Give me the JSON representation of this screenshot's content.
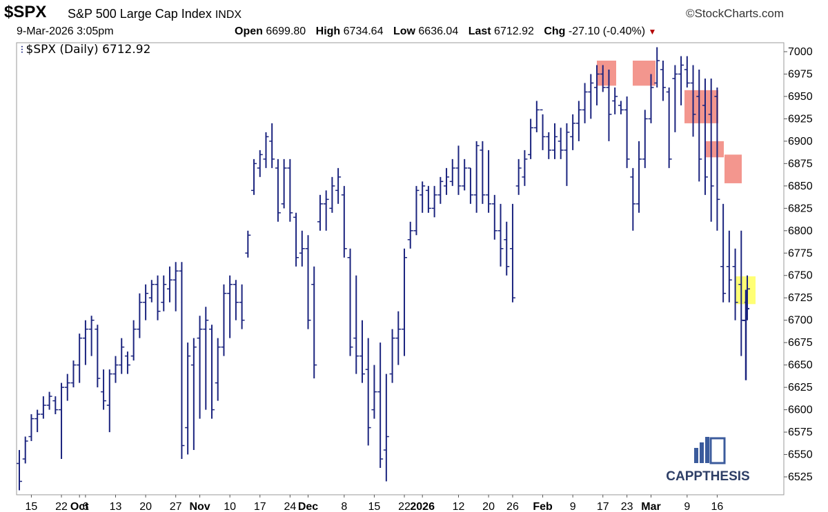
{
  "header": {
    "ticker": "$SPX",
    "name": "S&P 500 Large Cap Index",
    "exchange": "INDX",
    "brand": "©StockCharts.com",
    "date": "9-Mar-2026 3:05pm",
    "open_label": "Open",
    "open": "6699.80",
    "high_label": "High",
    "high": "6734.64",
    "low_label": "Low",
    "low": "6636.04",
    "last_label": "Last",
    "last": "6712.92",
    "chg_label": "Chg",
    "chg": "-27.10 (-0.40%)"
  },
  "legend": {
    "text": "$SPX (Daily) 6712.92"
  },
  "logo": {
    "text": "CAPPTHESIS"
  },
  "colors": {
    "bars": "#1a237e",
    "resistance_box": "#f28b82",
    "current_box": "#ffff66"
  },
  "chart_data": {
    "type": "ohlc",
    "title": "$SPX (Daily) 6712.92",
    "ylim": [
      6505,
      7010
    ],
    "yticks": [
      6525,
      6550,
      6575,
      6600,
      6625,
      6650,
      6675,
      6700,
      6725,
      6750,
      6775,
      6800,
      6825,
      6850,
      6875,
      6900,
      6925,
      6950,
      6975,
      7000
    ],
    "xtick_labels": [
      {
        "label": "15",
        "x": 2,
        "bold": false
      },
      {
        "label": "22",
        "x": 7,
        "bold": false
      },
      {
        "label": "Oct",
        "x": 10,
        "bold": true
      },
      {
        "label": "6",
        "x": 11,
        "bold": false
      },
      {
        "label": "13",
        "x": 16,
        "bold": false
      },
      {
        "label": "20",
        "x": 21,
        "bold": false
      },
      {
        "label": "27",
        "x": 26,
        "bold": false
      },
      {
        "label": "Nov",
        "x": 30,
        "bold": true
      },
      {
        "label": "10",
        "x": 35,
        "bold": false
      },
      {
        "label": "17",
        "x": 40,
        "bold": false
      },
      {
        "label": "24",
        "x": 45,
        "bold": false
      },
      {
        "label": "Dec",
        "x": 48,
        "bold": true
      },
      {
        "label": "8",
        "x": 54,
        "bold": false
      },
      {
        "label": "15",
        "x": 59,
        "bold": false
      },
      {
        "label": "22",
        "x": 64,
        "bold": false
      },
      {
        "label": "2026",
        "x": 67,
        "bold": true
      },
      {
        "label": "12",
        "x": 73,
        "bold": false
      },
      {
        "label": "20",
        "x": 78,
        "bold": false
      },
      {
        "label": "26",
        "x": 82,
        "bold": false
      },
      {
        "label": "Feb",
        "x": 87,
        "bold": true
      },
      {
        "label": "9",
        "x": 92,
        "bold": false
      },
      {
        "label": "17",
        "x": 97,
        "bold": false
      },
      {
        "label": "23",
        "x": 101,
        "bold": false
      },
      {
        "label": "Mar",
        "x": 105,
        "bold": true
      },
      {
        "label": "9",
        "x": 111,
        "bold": false
      },
      {
        "label": "16",
        "x": 116,
        "bold": false
      }
    ],
    "x_count": 118,
    "bars": [
      [
        0,
        6555,
        6510,
        6540,
        6520
      ],
      [
        1,
        6570,
        6540,
        6545,
        6565
      ],
      [
        2,
        6595,
        6565,
        6570,
        6590
      ],
      [
        3,
        6600,
        6575,
        6590,
        6595
      ],
      [
        4,
        6615,
        6590,
        6595,
        6605
      ],
      [
        5,
        6620,
        6600,
        6605,
        6615
      ],
      [
        6,
        6615,
        6595,
        6610,
        6600
      ],
      [
        7,
        6630,
        6545,
        6600,
        6625
      ],
      [
        8,
        6640,
        6610,
        6625,
        6630
      ],
      [
        9,
        6655,
        6625,
        6630,
        6650
      ],
      [
        10,
        6685,
        6630,
        6650,
        6680
      ],
      [
        11,
        6700,
        6650,
        6680,
        6690
      ],
      [
        12,
        6705,
        6660,
        6690,
        6700
      ],
      [
        13,
        6695,
        6625,
        6690,
        6635
      ],
      [
        14,
        6645,
        6600,
        6620,
        6610
      ],
      [
        15,
        6645,
        6575,
        6605,
        6640
      ],
      [
        16,
        6660,
        6630,
        6640,
        6650
      ],
      [
        17,
        6680,
        6640,
        6650,
        6670
      ],
      [
        18,
        6665,
        6640,
        6660,
        6650
      ],
      [
        19,
        6700,
        6655,
        6660,
        6690
      ],
      [
        20,
        6730,
        6680,
        6690,
        6720
      ],
      [
        21,
        6740,
        6700,
        6720,
        6730
      ],
      [
        22,
        6745,
        6720,
        6725,
        6740
      ],
      [
        23,
        6750,
        6700,
        6740,
        6710
      ],
      [
        24,
        6750,
        6710,
        6720,
        6740
      ],
      [
        25,
        6760,
        6720,
        6735,
        6745
      ],
      [
        26,
        6765,
        6710,
        6745,
        6755
      ],
      [
        27,
        6765,
        6545,
        6755,
        6560
      ],
      [
        28,
        6675,
        6550,
        6580,
        6660
      ],
      [
        29,
        6680,
        6555,
        6650,
        6670
      ],
      [
        30,
        6705,
        6590,
        6680,
        6690
      ],
      [
        31,
        6715,
        6600,
        6690,
        6700
      ],
      [
        32,
        6695,
        6590,
        6690,
        6600
      ],
      [
        33,
        6680,
        6610,
        6630,
        6670
      ],
      [
        34,
        6740,
        6660,
        6670,
        6730
      ],
      [
        35,
        6750,
        6680,
        6730,
        6740
      ],
      [
        36,
        6745,
        6700,
        6740,
        6720
      ],
      [
        37,
        6740,
        6690,
        6720,
        6700
      ],
      [
        38,
        6800,
        6770,
        6775,
        6795
      ],
      [
        39,
        6880,
        6840,
        6845,
        6875
      ],
      [
        40,
        6890,
        6860,
        6870,
        6885
      ],
      [
        41,
        6910,
        6870,
        6880,
        6905
      ],
      [
        42,
        6920,
        6870,
        6900,
        6880
      ],
      [
        43,
        6880,
        6810,
        6870,
        6820
      ],
      [
        44,
        6880,
        6825,
        6830,
        6870
      ],
      [
        45,
        6880,
        6810,
        6870,
        6820
      ],
      [
        46,
        6820,
        6760,
        6815,
        6770
      ],
      [
        47,
        6800,
        6760,
        6775,
        6780
      ],
      [
        48,
        6795,
        6690,
        6780,
        6700
      ],
      [
        49,
        6760,
        6635,
        6740,
        6650
      ],
      [
        50,
        6840,
        6800,
        6810,
        6830
      ],
      [
        51,
        6845,
        6800,
        6830,
        6835
      ],
      [
        52,
        6860,
        6820,
        6825,
        6850
      ],
      [
        53,
        6870,
        6830,
        6845,
        6860
      ],
      [
        54,
        6850,
        6770,
        6840,
        6780
      ],
      [
        55,
        6780,
        6660,
        6770,
        6670
      ],
      [
        56,
        6750,
        6640,
        6680,
        6660
      ],
      [
        57,
        6700,
        6630,
        6660,
        6640
      ],
      [
        58,
        6680,
        6560,
        6645,
        6580
      ],
      [
        59,
        6650,
        6590,
        6600,
        6620
      ],
      [
        60,
        6675,
        6535,
        6620,
        6545
      ],
      [
        61,
        6640,
        6520,
        6555,
        6570
      ],
      [
        62,
        6690,
        6630,
        6640,
        6680
      ],
      [
        63,
        6710,
        6650,
        6680,
        6690
      ],
      [
        64,
        6780,
        6660,
        6690,
        6770
      ],
      [
        65,
        6810,
        6780,
        6790,
        6800
      ],
      [
        66,
        6850,
        6795,
        6800,
        6845
      ],
      [
        67,
        6855,
        6820,
        6840,
        6850
      ],
      [
        68,
        6850,
        6820,
        6845,
        6825
      ],
      [
        69,
        6850,
        6815,
        6825,
        6840
      ],
      [
        70,
        6860,
        6830,
        6840,
        6855
      ],
      [
        71,
        6870,
        6840,
        6850,
        6860
      ],
      [
        72,
        6880,
        6850,
        6855,
        6870
      ],
      [
        73,
        6895,
        6840,
        6870,
        6850
      ],
      [
        74,
        6880,
        6845,
        6850,
        6870
      ],
      [
        75,
        6870,
        6830,
        6870,
        6840
      ],
      [
        76,
        6900,
        6820,
        6840,
        6895
      ],
      [
        77,
        6900,
        6830,
        6890,
        6840
      ],
      [
        78,
        6890,
        6820,
        6840,
        6830
      ],
      [
        79,
        6840,
        6790,
        6830,
        6800
      ],
      [
        80,
        6830,
        6760,
        6800,
        6780
      ],
      [
        81,
        6810,
        6750,
        6790,
        6760
      ],
      [
        82,
        6830,
        6720,
        6780,
        6725
      ],
      [
        83,
        6880,
        6840,
        6850,
        6870
      ],
      [
        84,
        6890,
        6850,
        6860,
        6880
      ],
      [
        85,
        6925,
        6880,
        6885,
        6915
      ],
      [
        86,
        6945,
        6910,
        6915,
        6935
      ],
      [
        87,
        6930,
        6890,
        6935,
        6905
      ],
      [
        88,
        6910,
        6880,
        6905,
        6890
      ],
      [
        89,
        6920,
        6880,
        6890,
        6905
      ],
      [
        90,
        6915,
        6880,
        6900,
        6890
      ],
      [
        91,
        6920,
        6850,
        6890,
        6910
      ],
      [
        92,
        6930,
        6890,
        6905,
        6920
      ],
      [
        93,
        6945,
        6900,
        6920,
        6935
      ],
      [
        94,
        6965,
        6920,
        6935,
        6955
      ],
      [
        95,
        6975,
        6925,
        6955,
        6965
      ],
      [
        96,
        6985,
        6940,
        6960,
        6975
      ],
      [
        97,
        6985,
        6955,
        6975,
        6960
      ],
      [
        98,
        6980,
        6900,
        6960,
        6930
      ],
      [
        99,
        6960,
        6930,
        6945,
        6950
      ],
      [
        100,
        6945,
        6930,
        6940,
        6935
      ],
      [
        101,
        6950,
        6870,
        6935,
        6880
      ],
      [
        102,
        6870,
        6800,
        6860,
        6830
      ],
      [
        103,
        6900,
        6820,
        6830,
        6880
      ],
      [
        104,
        6935,
        6870,
        6880,
        6925
      ],
      [
        105,
        6975,
        6920,
        6925,
        6960
      ],
      [
        106,
        7005,
        6960,
        6965,
        6990
      ],
      [
        107,
        6990,
        6945,
        6980,
        6960
      ],
      [
        108,
        6960,
        6870,
        6955,
        6880
      ],
      [
        109,
        6985,
        6910,
        6970,
        6975
      ],
      [
        110,
        6995,
        6940,
        6975,
        6985
      ],
      [
        111,
        6995,
        6960,
        6980,
        6965
      ],
      [
        112,
        6985,
        6905,
        6965,
        6930
      ],
      [
        113,
        6980,
        6855,
        6950,
        6880
      ],
      [
        114,
        6970,
        6840,
        6940,
        6860
      ],
      [
        115,
        6970,
        6810,
        6930,
        6850
      ],
      [
        116,
        6960,
        6800,
        6950,
        6835
      ],
      [
        117,
        6830,
        6720,
        6760,
        6730
      ]
    ],
    "extra_bars": [
      [
        118,
        6800,
        6720,
        6760,
        6745
      ],
      [
        119,
        6780,
        6700,
        6760,
        6720
      ],
      [
        120,
        6800,
        6660,
        6740,
        6700
      ],
      [
        121,
        6750,
        6700,
        6720,
        6735
      ]
    ]
  }
}
